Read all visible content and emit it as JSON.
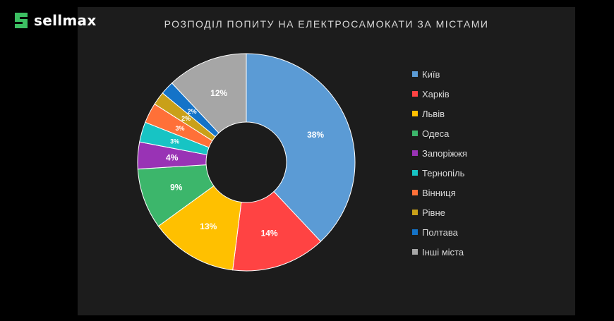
{
  "brand": {
    "name": "sellmax",
    "logo_icon": "sellmax-s-icon",
    "accent": "#3cbf62"
  },
  "chart_data": {
    "type": "pie",
    "title": "РОЗПОДІЛ ПОПИТУ НА ЕЛЕКТРОСАМОКАТИ ЗА МІСТАМИ",
    "donut": true,
    "legend_position": "right",
    "categories": [
      "Київ",
      "Харків",
      "Львів",
      "Одеса",
      "Запоріжжя",
      "Тернопіль",
      "Вінниця",
      "Рівне",
      "Полтава",
      "Інші міста"
    ],
    "values": [
      38,
      14,
      13,
      9,
      4,
      3,
      3,
      2,
      2,
      12
    ],
    "labels": [
      "38%",
      "14%",
      "13%",
      "9%",
      "4%",
      "3%",
      "3%",
      "2%",
      "2%",
      "12%"
    ],
    "colors": [
      "#5b9bd5",
      "#ff4343",
      "#ffc000",
      "#3cb66b",
      "#9933b5",
      "#17c4c4",
      "#ff7038",
      "#c9a019",
      "#1473c8",
      "#a6a6a6"
    ]
  }
}
